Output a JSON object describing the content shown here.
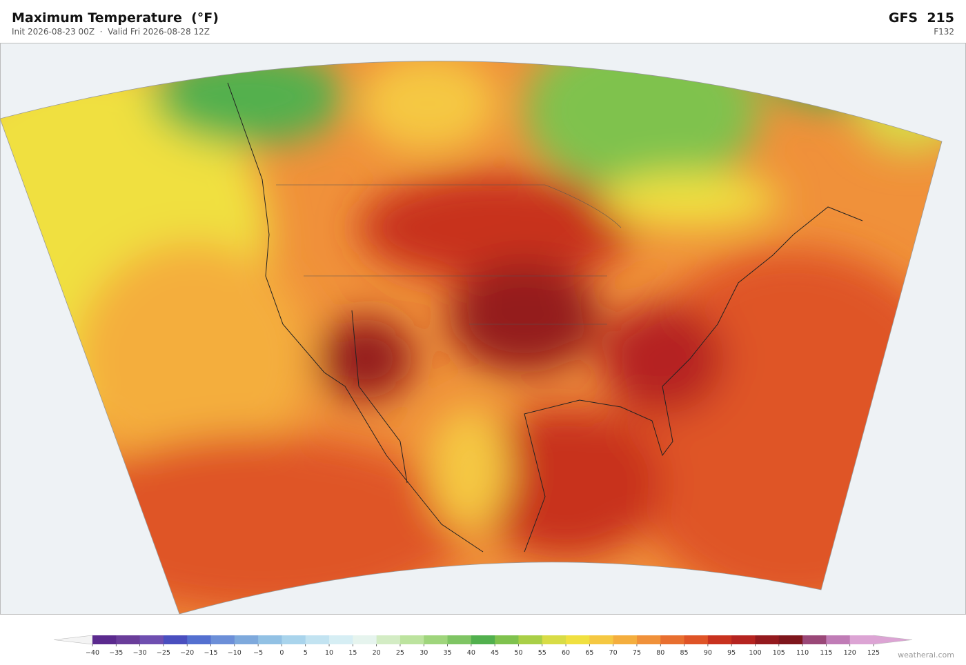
{
  "header": {
    "title": "Maximum Temperature  (°F)",
    "subtitle": "Init 2026-08-23 00Z  ·  Valid Fri 2026-08-28 12Z",
    "model": "GFS  215",
    "forecast_hour": "F132"
  },
  "colorbar": {
    "ticks": [
      {
        "value": -40,
        "label": "−40"
      },
      {
        "value": -35,
        "label": "−35"
      },
      {
        "value": -30,
        "label": "−30"
      },
      {
        "value": -25,
        "label": "−25"
      },
      {
        "value": -20,
        "label": "−20"
      },
      {
        "value": -15,
        "label": "−15"
      },
      {
        "value": -10,
        "label": "−10"
      },
      {
        "value": -5,
        "label": "−5"
      },
      0,
      5,
      10,
      15,
      20,
      25,
      30,
      35,
      40,
      45,
      50,
      55,
      60,
      65,
      70,
      75,
      80,
      85,
      90,
      95,
      100,
      105,
      110,
      115,
      120,
      125
    ],
    "colors": [
      "#5b2a8e",
      "#6a3d9a",
      "#6f4fb0",
      "#4a4fbf",
      "#5470d0",
      "#6c8fd8",
      "#7ea9dc",
      "#92c1e4",
      "#a9d4ec",
      "#c2e3f1",
      "#d6eef4",
      "#e6f4ee",
      "#d3ecc4",
      "#bce39e",
      "#9fd57c",
      "#7fc564",
      "#52b04e",
      "#7fc24e",
      "#a9cf47",
      "#d8dc46",
      "#f0e040",
      "#f5c842",
      "#f4ae3e",
      "#f0913a",
      "#e86f30",
      "#df5427",
      "#c8321f",
      "#b52420",
      "#941a1e",
      "#7e161c",
      "#9a4878",
      "#c07cb6",
      "#dca4d4"
    ],
    "under_color": "#f4f4f4",
    "over_color": "#dca4d4"
  },
  "footer": {
    "credit": "weatherai.com"
  }
}
